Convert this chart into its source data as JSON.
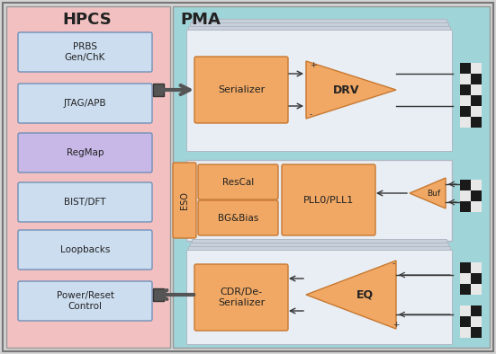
{
  "fig_width": 5.51,
  "fig_height": 3.94,
  "dpi": 100,
  "bg_color": "#d4d4d4",
  "hpcs_bg": "#f2c0c0",
  "pma_bg": "#9fd4d8",
  "card_bg": "#e8eef4",
  "card_border": "#b0b8c4",
  "card_shadow": "#c8d0dc",
  "box_orange": "#f0a864",
  "box_light_blue": "#ccddf0",
  "box_purple": "#c8b8e8",
  "box_border_blue": "#7090b8",
  "box_border_orange": "#c87830",
  "checker_dark": "#1a1a1a",
  "checker_light": "#e8e8e8",
  "arrow_color": "#333333",
  "title_hpcs": "HPCS",
  "title_pma": "PMA",
  "hpcs_labels": [
    "PRBS\nGen/ChK",
    "JTAG/APB",
    "RegMap",
    "BIST/DFT",
    "Loopbacks",
    "Power/Reset\nControl"
  ],
  "hpcs_colors": [
    "#ccddf0",
    "#ccddf0",
    "#c8b8e8",
    "#ccddf0",
    "#ccddf0",
    "#ccddf0"
  ]
}
